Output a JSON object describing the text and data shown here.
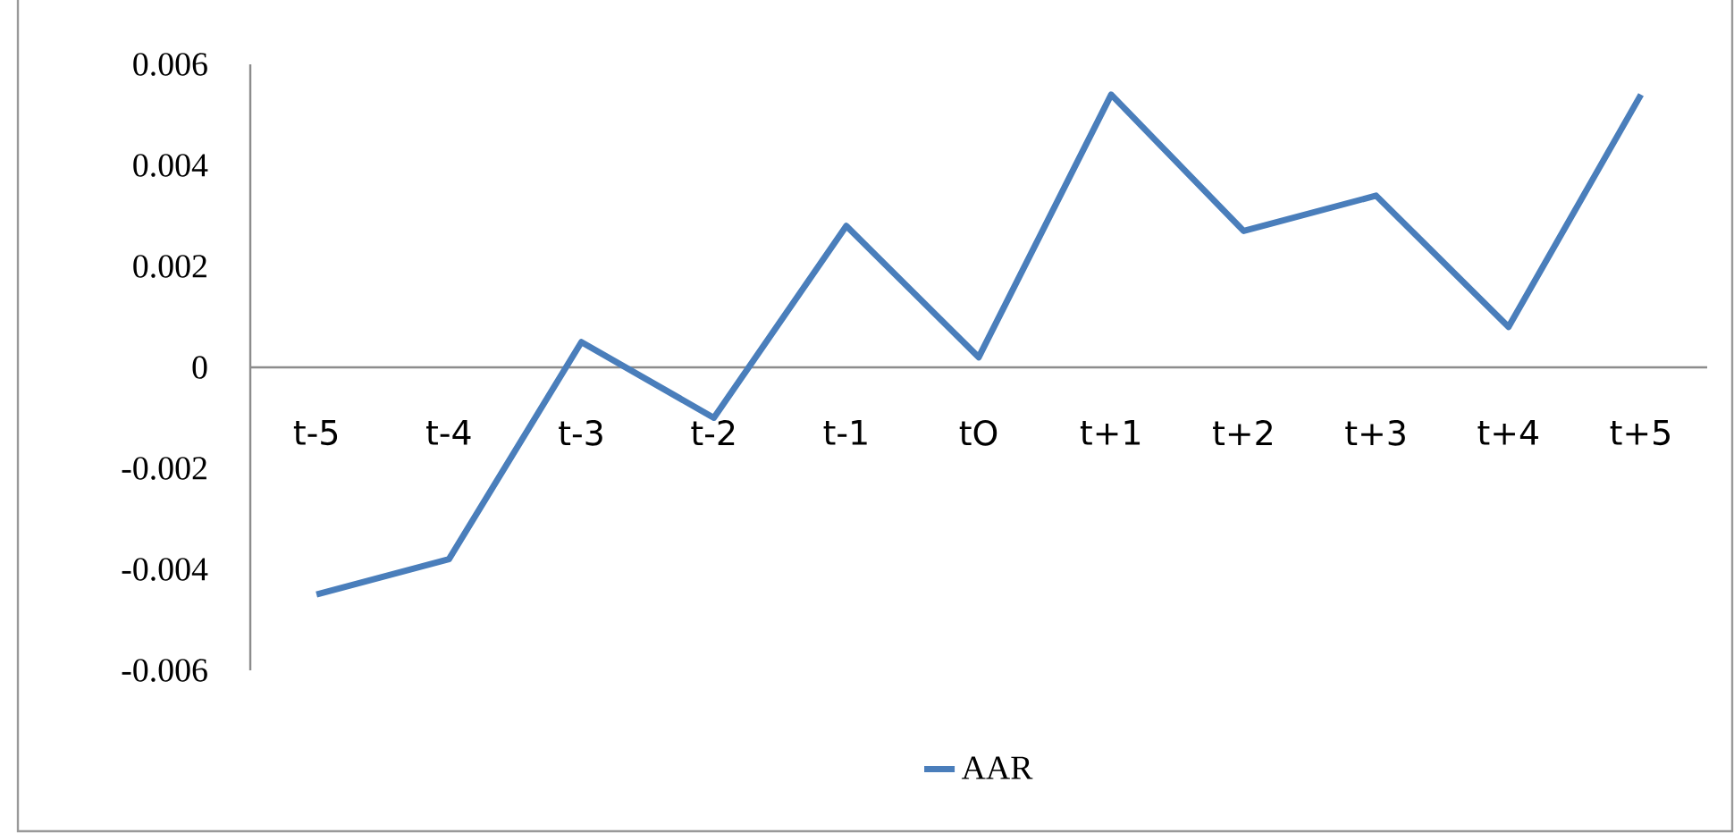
{
  "chart_data": {
    "type": "line",
    "categories": [
      "t-5",
      "t-4",
      "t-3",
      "t-2",
      "t-1",
      "tO",
      "t+1",
      "t+2",
      "t+3",
      "t+4",
      "t+5"
    ],
    "series": [
      {
        "name": "AAR",
        "color": "#4a7ebb",
        "values": [
          -0.0045,
          -0.0038,
          0.0005,
          -0.001,
          0.0028,
          0.0002,
          0.0054,
          0.0027,
          0.0034,
          0.0008,
          0.0054
        ]
      }
    ],
    "ylim": [
      -0.006,
      0.006
    ],
    "yticks": [
      -0.006,
      -0.004,
      -0.002,
      0,
      0.002,
      0.004,
      0.006
    ],
    "legend": "bottom"
  }
}
